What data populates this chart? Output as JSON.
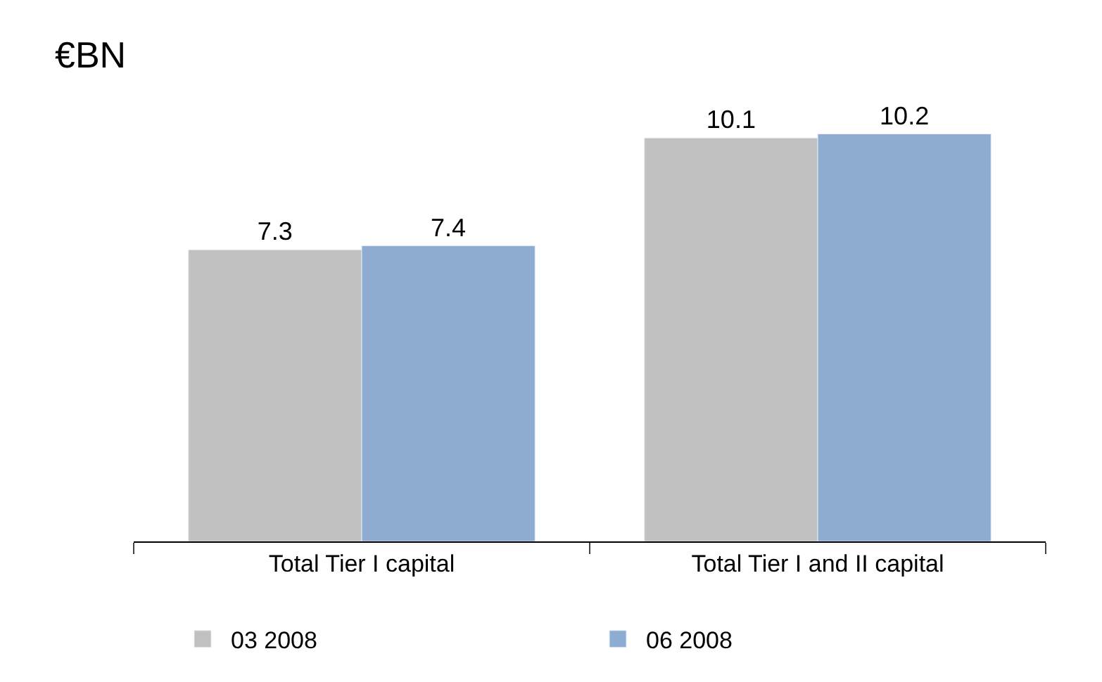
{
  "chart_data": {
    "type": "bar",
    "subtitle": "€BN",
    "categories": [
      "Total Tier I capital",
      "Total Tier I and II capital"
    ],
    "series": [
      {
        "name": "03 2008",
        "color": "#c0c0c0",
        "values": [
          7.3,
          10.1
        ]
      },
      {
        "name": "06 2008",
        "color": "#8eabd1",
        "values": [
          7.4,
          10.2
        ]
      }
    ],
    "data_labels": true,
    "legend": "bottom"
  }
}
